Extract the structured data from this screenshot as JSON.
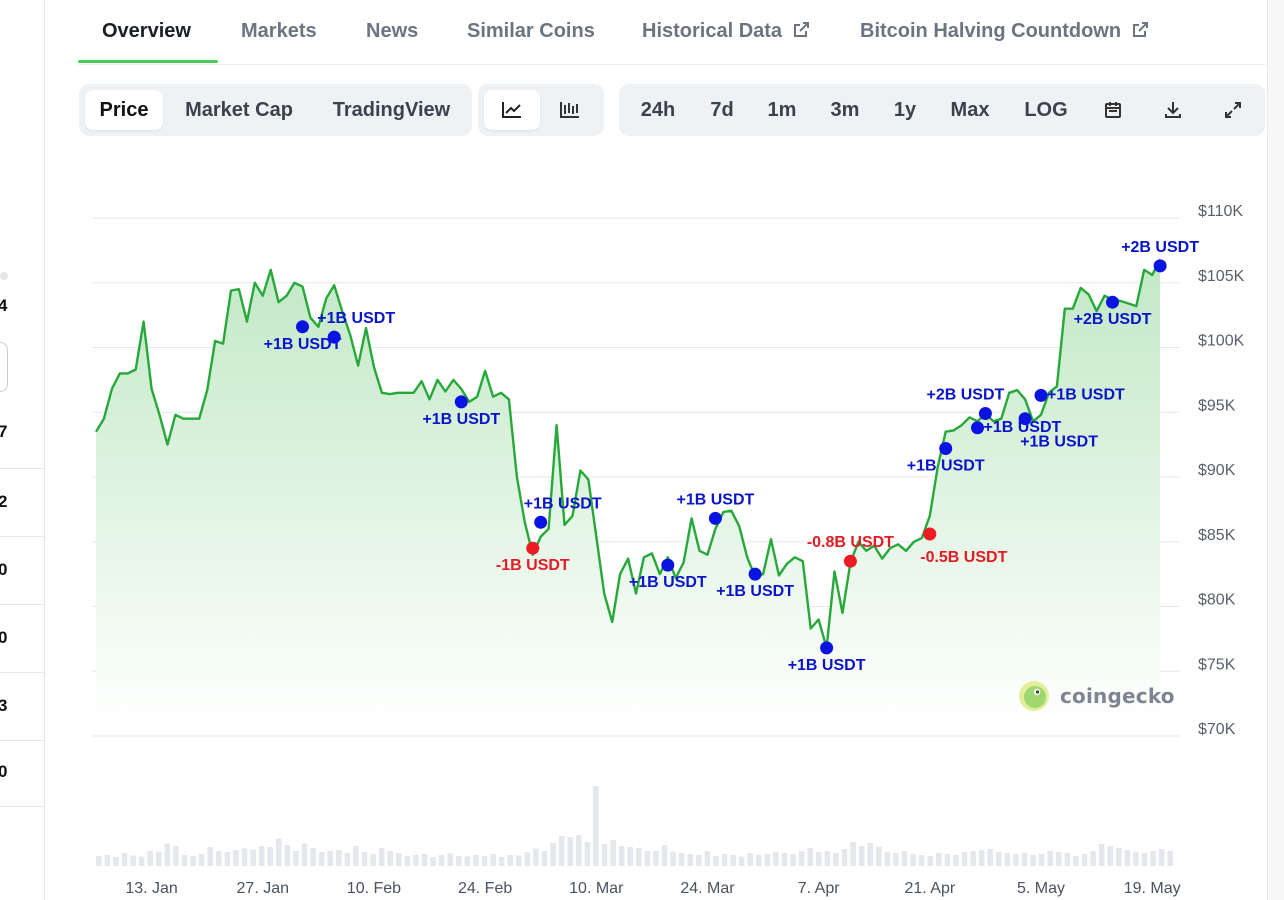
{
  "left_strip": {
    "numbers": [
      "4",
      "7",
      "2",
      "0",
      "0",
      "3",
      "0"
    ]
  },
  "tabs": [
    {
      "label": "Overview",
      "active": true
    },
    {
      "label": "Markets"
    },
    {
      "label": "News"
    },
    {
      "label": "Similar Coins"
    },
    {
      "label": "Historical Data",
      "external": true
    },
    {
      "label": "Bitcoin Halving Countdown",
      "external": true
    }
  ],
  "toolbar": {
    "metric_tabs": [
      "Price",
      "Market Cap",
      "TradingView"
    ],
    "selected_metric": "Price",
    "chart_styles": [
      "line-chart-icon",
      "candlestick-icon"
    ],
    "selected_style": "line-chart-icon",
    "ranges": [
      "24h",
      "7d",
      "1m",
      "3m",
      "1y",
      "Max",
      "LOG"
    ],
    "tools": [
      "calendar-icon",
      "download-icon",
      "expand-icon"
    ]
  },
  "watermark": {
    "text": "coingecko"
  },
  "colors": {
    "line": "#27a83a",
    "area_top": "#bfe7c3",
    "inflow_marker": "#0a14e0",
    "outflow_marker": "#ec1c24",
    "inflow_label": "#0a14c8",
    "outflow_label": "#e31b23",
    "active_tab_underline": "#4bcc57"
  },
  "chart_data": {
    "type": "line",
    "x_unit": "date (2025)",
    "x_ticks": [
      "13. Jan",
      "27. Jan",
      "10. Feb",
      "24. Feb",
      "10. Mar",
      "24. Mar",
      "7. Apr",
      "21. Apr",
      "5. May",
      "19. May"
    ],
    "x_tick_dates": [
      "2025-01-13",
      "2025-01-27",
      "2025-02-10",
      "2025-02-24",
      "2025-03-10",
      "2025-03-24",
      "2025-04-07",
      "2025-04-21",
      "2025-05-05",
      "2025-05-19"
    ],
    "y_ticks": [
      "$70K",
      "$75K",
      "$80K",
      "$85K",
      "$90K",
      "$95K",
      "$100K",
      "$105K",
      "$110K"
    ],
    "ylim": [
      70000,
      110000
    ],
    "x_range": [
      "2025-01-06",
      "2025-05-22"
    ],
    "grid": true,
    "series": [
      {
        "points": [
          [
            "2025-01-06",
            93500
          ],
          [
            "2025-01-07",
            94500
          ],
          [
            "2025-01-08",
            96800
          ],
          [
            "2025-01-09",
            98000
          ],
          [
            "2025-01-10",
            98000
          ],
          [
            "2025-01-11",
            98300
          ],
          [
            "2025-01-12",
            102000
          ],
          [
            "2025-01-13",
            96800
          ],
          [
            "2025-01-14",
            94800
          ],
          [
            "2025-01-15",
            92500
          ],
          [
            "2025-01-16",
            94800
          ],
          [
            "2025-01-17",
            94500
          ],
          [
            "2025-01-18",
            94500
          ],
          [
            "2025-01-19",
            94500
          ],
          [
            "2025-01-20",
            96700
          ],
          [
            "2025-01-21",
            100500
          ],
          [
            "2025-01-22",
            100300
          ],
          [
            "2025-01-23",
            104400
          ],
          [
            "2025-01-24",
            104500
          ],
          [
            "2025-01-25",
            102000
          ],
          [
            "2025-01-26",
            105000
          ],
          [
            "2025-01-27",
            104000
          ],
          [
            "2025-01-28",
            106000
          ],
          [
            "2025-01-29",
            103500
          ],
          [
            "2025-01-30",
            104000
          ],
          [
            "2025-01-31",
            105000
          ],
          [
            "2025-02-01",
            104700
          ],
          [
            "2025-02-02",
            102300
          ],
          [
            "2025-02-03",
            101600
          ],
          [
            "2025-02-04",
            103800
          ],
          [
            "2025-02-05",
            104800
          ],
          [
            "2025-02-06",
            102800
          ],
          [
            "2025-02-07",
            101000
          ],
          [
            "2025-02-08",
            98600
          ],
          [
            "2025-02-09",
            101500
          ],
          [
            "2025-02-10",
            98500
          ],
          [
            "2025-02-11",
            96500
          ],
          [
            "2025-02-12",
            96400
          ],
          [
            "2025-02-13",
            96500
          ],
          [
            "2025-02-14",
            96500
          ],
          [
            "2025-02-15",
            96500
          ],
          [
            "2025-02-16",
            97400
          ],
          [
            "2025-02-17",
            96000
          ],
          [
            "2025-02-18",
            97500
          ],
          [
            "2025-02-19",
            96600
          ],
          [
            "2025-02-20",
            97500
          ],
          [
            "2025-02-21",
            96800
          ],
          [
            "2025-02-22",
            95800
          ],
          [
            "2025-02-23",
            96200
          ],
          [
            "2025-02-24",
            98200
          ],
          [
            "2025-02-25",
            96200
          ],
          [
            "2025-02-26",
            96500
          ],
          [
            "2025-02-27",
            96000
          ],
          [
            "2025-02-28",
            90000
          ],
          [
            "2025-03-01",
            86500
          ],
          [
            "2025-03-02",
            84000
          ],
          [
            "2025-03-03",
            85400
          ],
          [
            "2025-03-04",
            86000
          ],
          [
            "2025-03-05",
            94000
          ],
          [
            "2025-03-06",
            86300
          ],
          [
            "2025-03-07",
            87000
          ],
          [
            "2025-03-08",
            90500
          ],
          [
            "2025-03-09",
            89800
          ],
          [
            "2025-03-10",
            85400
          ],
          [
            "2025-03-11",
            81000
          ],
          [
            "2025-03-12",
            78800
          ],
          [
            "2025-03-13",
            82500
          ],
          [
            "2025-03-14",
            83700
          ],
          [
            "2025-03-15",
            81000
          ],
          [
            "2025-03-16",
            83800
          ],
          [
            "2025-03-17",
            84100
          ],
          [
            "2025-03-18",
            82500
          ],
          [
            "2025-03-19",
            83800
          ],
          [
            "2025-03-20",
            82200
          ],
          [
            "2025-03-21",
            83400
          ],
          [
            "2025-03-22",
            86800
          ],
          [
            "2025-03-23",
            84300
          ],
          [
            "2025-03-24",
            84000
          ],
          [
            "2025-03-25",
            86000
          ],
          [
            "2025-03-26",
            87300
          ],
          [
            "2025-03-27",
            87400
          ],
          [
            "2025-03-28",
            86200
          ],
          [
            "2025-03-29",
            83800
          ],
          [
            "2025-03-30",
            82300
          ],
          [
            "2025-03-31",
            82500
          ],
          [
            "2025-04-01",
            85200
          ],
          [
            "2025-04-02",
            82400
          ],
          [
            "2025-04-03",
            83300
          ],
          [
            "2025-04-04",
            83800
          ],
          [
            "2025-04-05",
            83500
          ],
          [
            "2025-04-06",
            78300
          ],
          [
            "2025-04-07",
            79000
          ],
          [
            "2025-04-08",
            76800
          ],
          [
            "2025-04-09",
            82700
          ],
          [
            "2025-04-10",
            79500
          ],
          [
            "2025-04-11",
            83400
          ],
          [
            "2025-04-12",
            85000
          ],
          [
            "2025-04-13",
            84300
          ],
          [
            "2025-04-14",
            84700
          ],
          [
            "2025-04-15",
            83700
          ],
          [
            "2025-04-16",
            84500
          ],
          [
            "2025-04-17",
            84800
          ],
          [
            "2025-04-18",
            84300
          ],
          [
            "2025-04-19",
            85000
          ],
          [
            "2025-04-20",
            85300
          ],
          [
            "2025-04-21",
            87000
          ],
          [
            "2025-04-22",
            90800
          ],
          [
            "2025-04-23",
            93500
          ],
          [
            "2025-04-24",
            93600
          ],
          [
            "2025-04-25",
            94000
          ],
          [
            "2025-04-26",
            94600
          ],
          [
            "2025-04-27",
            94300
          ],
          [
            "2025-04-28",
            94900
          ],
          [
            "2025-04-29",
            94300
          ],
          [
            "2025-04-30",
            94500
          ],
          [
            "2025-05-01",
            96500
          ],
          [
            "2025-05-02",
            96700
          ],
          [
            "2025-05-03",
            96000
          ],
          [
            "2025-05-04",
            94300
          ],
          [
            "2025-05-05",
            94800
          ],
          [
            "2025-05-06",
            96500
          ],
          [
            "2025-05-07",
            97000
          ],
          [
            "2025-05-08",
            103000
          ],
          [
            "2025-05-09",
            103000
          ],
          [
            "2025-05-10",
            104600
          ],
          [
            "2025-05-11",
            104100
          ],
          [
            "2025-05-12",
            102800
          ],
          [
            "2025-05-13",
            104000
          ],
          [
            "2025-05-14",
            103700
          ],
          [
            "2025-05-15",
            103600
          ],
          [
            "2025-05-16",
            103400
          ],
          [
            "2025-05-17",
            103200
          ],
          [
            "2025-05-18",
            106000
          ],
          [
            "2025-05-19",
            105600
          ],
          [
            "2025-05-20",
            106800
          ]
        ]
      }
    ],
    "annotations": [
      {
        "date": "2025-02-01",
        "value": 101600,
        "label": "+1B USDT",
        "kind": "inflow",
        "label_pos": "below"
      },
      {
        "date": "2025-02-05",
        "value": 100800,
        "label": "+1B USDT",
        "kind": "inflow",
        "label_pos": "above-right"
      },
      {
        "date": "2025-02-21",
        "value": 95800,
        "label": "+1B USDT",
        "kind": "inflow",
        "label_pos": "below"
      },
      {
        "date": "2025-03-02",
        "value": 84500,
        "label": "-1B USDT",
        "kind": "outflow",
        "label_pos": "below"
      },
      {
        "date": "2025-03-03",
        "value": 86500,
        "label": "+1B USDT",
        "kind": "inflow",
        "label_pos": "above-right"
      },
      {
        "date": "2025-03-19",
        "value": 83200,
        "label": "+1B USDT",
        "kind": "inflow",
        "label_pos": "below"
      },
      {
        "date": "2025-03-25",
        "value": 86800,
        "label": "+1B USDT",
        "kind": "inflow",
        "label_pos": "above"
      },
      {
        "date": "2025-03-30",
        "value": 82500,
        "label": "+1B USDT",
        "kind": "inflow",
        "label_pos": "below"
      },
      {
        "date": "2025-04-08",
        "value": 76800,
        "label": "+1B USDT",
        "kind": "inflow",
        "label_pos": "below"
      },
      {
        "date": "2025-04-11",
        "value": 83500,
        "label": "-0.8B USDT",
        "kind": "outflow",
        "label_pos": "above"
      },
      {
        "date": "2025-04-21",
        "value": 85600,
        "label": "-0.5B USDT",
        "kind": "outflow",
        "label_pos": "below-right"
      },
      {
        "date": "2025-04-23",
        "value": 92200,
        "label": "+1B USDT",
        "kind": "inflow",
        "label_pos": "below"
      },
      {
        "date": "2025-04-27",
        "value": 93800,
        "label": "+1B USDT",
        "kind": "inflow",
        "label_pos": "right"
      },
      {
        "date": "2025-04-28",
        "value": 94900,
        "label": "+2B USDT",
        "kind": "inflow",
        "label_pos": "above-left"
      },
      {
        "date": "2025-05-03",
        "value": 94500,
        "label": "+1B USDT",
        "kind": "inflow",
        "label_pos": "below-right"
      },
      {
        "date": "2025-05-05",
        "value": 96300,
        "label": "+1B USDT",
        "kind": "inflow",
        "label_pos": "right"
      },
      {
        "date": "2025-05-14",
        "value": 103500,
        "label": "+2B USDT",
        "kind": "inflow",
        "label_pos": "below"
      },
      {
        "date": "2025-05-20",
        "value": 106300,
        "label": "+2B USDT",
        "kind": "inflow",
        "label_pos": "above"
      }
    ],
    "volume_series": {
      "note": "relative volume bars under the price line",
      "values": [
        20,
        22,
        18,
        26,
        21,
        19,
        30,
        28,
        45,
        40,
        22,
        20,
        24,
        38,
        30,
        28,
        32,
        35,
        33,
        40,
        38,
        55,
        42,
        30,
        45,
        36,
        28,
        30,
        32,
        26,
        40,
        28,
        24,
        36,
        30,
        26,
        20,
        22,
        24,
        18,
        22,
        25,
        20,
        19,
        22,
        20,
        24,
        18,
        22,
        21,
        28,
        35,
        30,
        46,
        60,
        58,
        62,
        48,
        160,
        44,
        52,
        40,
        38,
        36,
        30,
        30,
        42,
        28,
        26,
        24,
        22,
        30,
        20,
        24,
        22,
        19,
        26,
        22,
        24,
        28,
        26,
        24,
        30,
        36,
        28,
        30,
        26,
        34,
        48,
        40,
        46,
        38,
        28,
        26,
        30,
        24,
        22,
        20,
        26,
        24,
        22,
        28,
        30,
        32,
        34,
        28,
        26,
        24,
        26,
        22,
        24,
        30,
        28,
        26,
        20,
        24,
        30,
        44,
        40,
        36,
        32,
        28,
        26,
        30,
        34,
        30
      ]
    }
  }
}
